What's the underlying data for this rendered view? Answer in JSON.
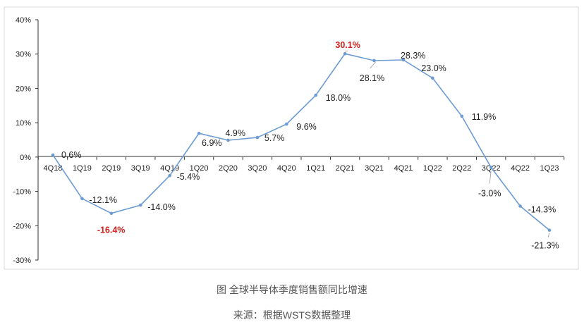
{
  "chart_data": {
    "type": "line",
    "title": "",
    "xlabel": "",
    "ylabel": "",
    "ylim": [
      -30,
      40
    ],
    "yticks": [
      40,
      30,
      20,
      10,
      0,
      -10,
      -20,
      -30
    ],
    "ytick_labels": [
      "40%",
      "30%",
      "20%",
      "10%",
      "0%",
      "-10%",
      "-20%",
      "-30%"
    ],
    "categories": [
      "4Q18",
      "1Q19",
      "2Q19",
      "3Q19",
      "4Q19",
      "1Q20",
      "2Q20",
      "3Q20",
      "4Q20",
      "1Q21",
      "2Q21",
      "3Q21",
      "4Q21",
      "1Q22",
      "2Q22",
      "3Q22",
      "4Q22",
      "1Q23"
    ],
    "series": [
      {
        "name": "全球半导体季度销售额同比增速",
        "color": "#6b9bd1",
        "values": [
          0.6,
          -12.1,
          -16.4,
          -14.0,
          -5.4,
          6.9,
          4.9,
          5.7,
          9.6,
          18.0,
          30.1,
          28.1,
          28.3,
          23.0,
          11.9,
          -3.0,
          -14.3,
          -21.3
        ],
        "labels": [
          "0.6%",
          "-12.1%",
          "-16.4%",
          "-14.0%",
          "-5.4%",
          "6.9%",
          "4.9%",
          "5.7%",
          "9.6%",
          "18.0%",
          "30.1%",
          "28.1%",
          "28.3%",
          "23.0%",
          "11.9%",
          "-3.0%",
          "-14.3%",
          "-21.3%"
        ],
        "highlight_color": "#d0201b",
        "highlighted": [
          "2Q19",
          "2Q21"
        ]
      }
    ],
    "grid": false
  },
  "caption": {
    "title": "图 全球半导体季度销售额同比增速",
    "source": "来源：根据WSTS数据整理"
  }
}
